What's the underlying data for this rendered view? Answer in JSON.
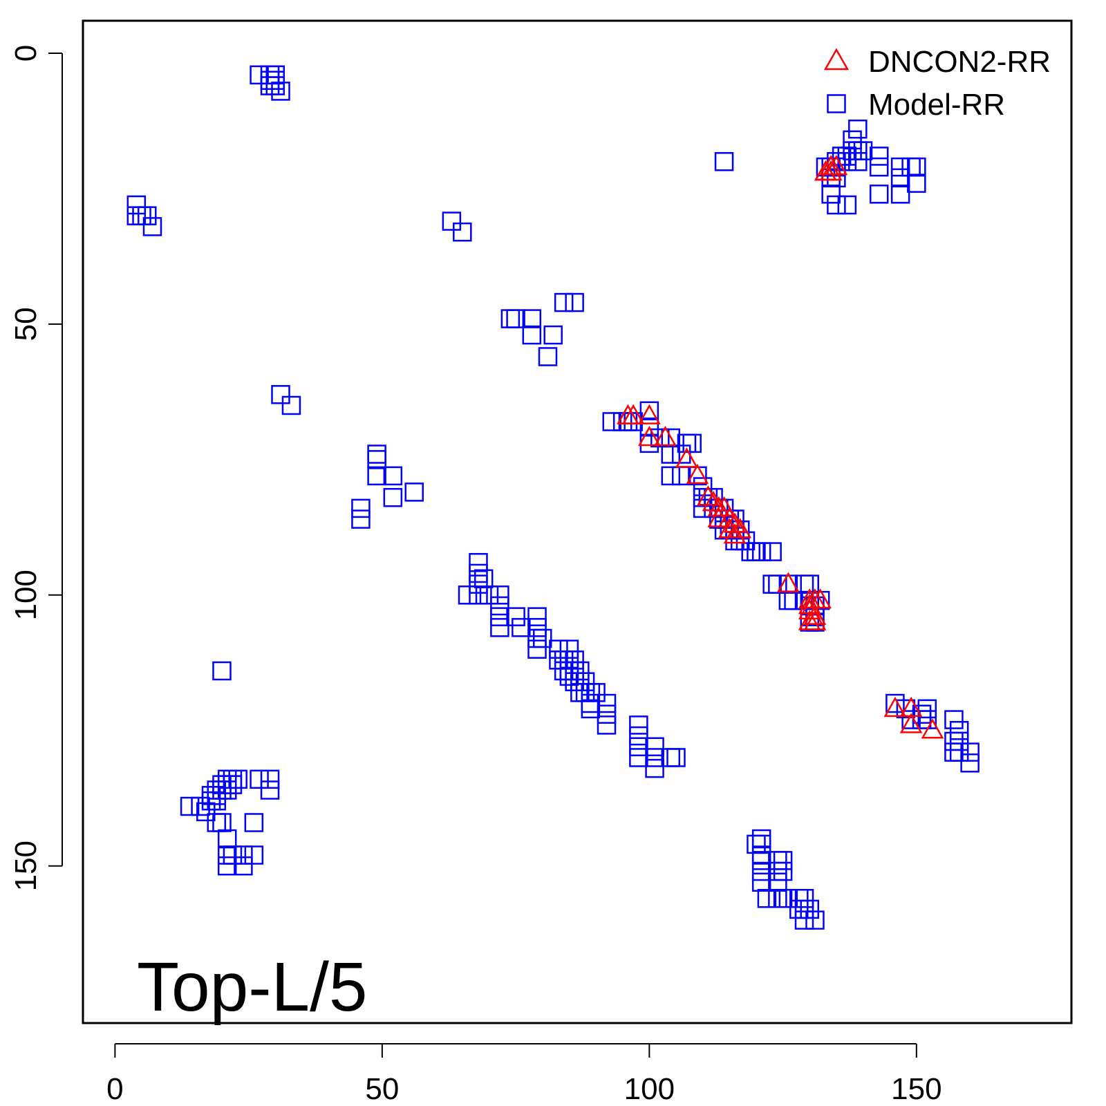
{
  "chart_data": {
    "type": "scatter",
    "annotation": "Top-L/5",
    "xlim": [
      -6,
      179
    ],
    "ylim": [
      179,
      -6
    ],
    "y_axis_reversed": true,
    "x_ticks": [
      0,
      50,
      100,
      150
    ],
    "y_ticks": [
      0,
      50,
      100,
      150
    ],
    "legend_position": "top-right",
    "grid": false,
    "series": [
      {
        "name": "DNCON2-RR",
        "marker": "triangle",
        "color": "#ff0000",
        "points": [
          [
            96,
            67
          ],
          [
            97,
            67
          ],
          [
            100,
            67
          ],
          [
            100,
            71
          ],
          [
            103,
            71
          ],
          [
            107,
            75
          ],
          [
            109,
            78
          ],
          [
            111,
            82
          ],
          [
            112,
            83
          ],
          [
            113,
            84
          ],
          [
            114,
            84
          ],
          [
            113,
            86
          ],
          [
            115,
            86
          ],
          [
            116,
            87
          ],
          [
            115,
            88
          ],
          [
            117,
            88
          ],
          [
            116,
            89
          ],
          [
            126,
            98
          ],
          [
            130,
            101
          ],
          [
            131,
            101
          ],
          [
            132,
            101
          ],
          [
            130,
            102
          ],
          [
            130,
            103
          ],
          [
            131,
            104
          ],
          [
            130,
            105
          ],
          [
            131,
            105
          ],
          [
            133,
            22
          ],
          [
            134,
            21
          ],
          [
            135,
            21
          ],
          [
            133,
            22
          ],
          [
            134,
            22
          ],
          [
            146,
            121
          ],
          [
            149,
            121
          ],
          [
            149,
            124
          ],
          [
            153,
            125
          ]
        ]
      },
      {
        "name": "Model-RR",
        "marker": "square",
        "color": "#0000ff",
        "points": [
          [
            4,
            28
          ],
          [
            4,
            30
          ],
          [
            5,
            30
          ],
          [
            6,
            30
          ],
          [
            7,
            32
          ],
          [
            27,
            4
          ],
          [
            29,
            4
          ],
          [
            30,
            4
          ],
          [
            29,
            5
          ],
          [
            30,
            5
          ],
          [
            29,
            6
          ],
          [
            30,
            6
          ],
          [
            31,
            7
          ],
          [
            63,
            31
          ],
          [
            65,
            33
          ],
          [
            74,
            49
          ],
          [
            75,
            49
          ],
          [
            78,
            49
          ],
          [
            78,
            52
          ],
          [
            82,
            52
          ],
          [
            81,
            56
          ],
          [
            84,
            46
          ],
          [
            86,
            46
          ],
          [
            31,
            63
          ],
          [
            33,
            65
          ],
          [
            49,
            74
          ],
          [
            49,
            75
          ],
          [
            49,
            78
          ],
          [
            52,
            78
          ],
          [
            52,
            82
          ],
          [
            56,
            81
          ],
          [
            46,
            84
          ],
          [
            46,
            86
          ],
          [
            114,
            20
          ],
          [
            93,
            68
          ],
          [
            95,
            68
          ],
          [
            96,
            68
          ],
          [
            97,
            68
          ],
          [
            100,
            66
          ],
          [
            100,
            69
          ],
          [
            100,
            72
          ],
          [
            102,
            71
          ],
          [
            104,
            71
          ],
          [
            107,
            72
          ],
          [
            108,
            72
          ],
          [
            104,
            74
          ],
          [
            106,
            74
          ],
          [
            104,
            78
          ],
          [
            106,
            78
          ],
          [
            109,
            78
          ],
          [
            110,
            80
          ],
          [
            110,
            82
          ],
          [
            111,
            82
          ],
          [
            112,
            82
          ],
          [
            110,
            84
          ],
          [
            112,
            84
          ],
          [
            113,
            84
          ],
          [
            114,
            84
          ],
          [
            113,
            86
          ],
          [
            114,
            86
          ],
          [
            115,
            86
          ],
          [
            116,
            86
          ],
          [
            114,
            88
          ],
          [
            115,
            88
          ],
          [
            116,
            88
          ],
          [
            117,
            88
          ],
          [
            116,
            90
          ],
          [
            117,
            90
          ],
          [
            118,
            90
          ],
          [
            119,
            92
          ],
          [
            120,
            92
          ],
          [
            121,
            92
          ],
          [
            123,
            92
          ],
          [
            123,
            98
          ],
          [
            124,
            98
          ],
          [
            126,
            98
          ],
          [
            129,
            98
          ],
          [
            130,
            98
          ],
          [
            126,
            101
          ],
          [
            127,
            101
          ],
          [
            129,
            101
          ],
          [
            130,
            101
          ],
          [
            130,
            102
          ],
          [
            131,
            102
          ],
          [
            132,
            101
          ],
          [
            130,
            104
          ],
          [
            131,
            104
          ],
          [
            130,
            105
          ],
          [
            131,
            105
          ],
          [
            133,
            21
          ],
          [
            134,
            21
          ],
          [
            135,
            21
          ],
          [
            136,
            19
          ],
          [
            137,
            19
          ],
          [
            138,
            18
          ],
          [
            139,
            18
          ],
          [
            140,
            18
          ],
          [
            138,
            16
          ],
          [
            139,
            14
          ],
          [
            135,
            20
          ],
          [
            137,
            20
          ],
          [
            139,
            20
          ],
          [
            134,
            23
          ],
          [
            135,
            23
          ],
          [
            134,
            26
          ],
          [
            135,
            28
          ],
          [
            137,
            28
          ],
          [
            143,
            19
          ],
          [
            143,
            21
          ],
          [
            147,
            21
          ],
          [
            149,
            21
          ],
          [
            150,
            21
          ],
          [
            147,
            23
          ],
          [
            150,
            24
          ],
          [
            143,
            26
          ],
          [
            147,
            26
          ],
          [
            68,
            94
          ],
          [
            68,
            96
          ],
          [
            69,
            97
          ],
          [
            68,
            98
          ],
          [
            66,
            100
          ],
          [
            68,
            100
          ],
          [
            70,
            100
          ],
          [
            72,
            100
          ],
          [
            72,
            102
          ],
          [
            72,
            104
          ],
          [
            75,
            104
          ],
          [
            72,
            106
          ],
          [
            76,
            106
          ],
          [
            79,
            104
          ],
          [
            79,
            106
          ],
          [
            79,
            108
          ],
          [
            80,
            108
          ],
          [
            79,
            110
          ],
          [
            83,
            110
          ],
          [
            85,
            110
          ],
          [
            83,
            112
          ],
          [
            84,
            112
          ],
          [
            85,
            112
          ],
          [
            86,
            112
          ],
          [
            84,
            114
          ],
          [
            85,
            114
          ],
          [
            86,
            114
          ],
          [
            87,
            114
          ],
          [
            85,
            115
          ],
          [
            86,
            116
          ],
          [
            87,
            116
          ],
          [
            88,
            116
          ],
          [
            87,
            118
          ],
          [
            88,
            118
          ],
          [
            89,
            118
          ],
          [
            90,
            118
          ],
          [
            89,
            120
          ],
          [
            92,
            120
          ],
          [
            92,
            122
          ],
          [
            92,
            124
          ],
          [
            89,
            121
          ],
          [
            98,
            124
          ],
          [
            98,
            126
          ],
          [
            98,
            128
          ],
          [
            98,
            130
          ],
          [
            101,
            128
          ],
          [
            101,
            130
          ],
          [
            101,
            132
          ],
          [
            104,
            130
          ],
          [
            105,
            130
          ],
          [
            146,
            120
          ],
          [
            148,
            121
          ],
          [
            151,
            122
          ],
          [
            152,
            121
          ],
          [
            149,
            123
          ],
          [
            151,
            123
          ],
          [
            152,
            123
          ],
          [
            157,
            123
          ],
          [
            158,
            125
          ],
          [
            157,
            127
          ],
          [
            158,
            127
          ],
          [
            157,
            129
          ],
          [
            158,
            129
          ],
          [
            160,
            129
          ],
          [
            160,
            131
          ],
          [
            29,
            134
          ],
          [
            29,
            136
          ],
          [
            27,
            134
          ],
          [
            21,
            134
          ],
          [
            22,
            134
          ],
          [
            23,
            134
          ],
          [
            20,
            135
          ],
          [
            21,
            135
          ],
          [
            22,
            135
          ],
          [
            19,
            136
          ],
          [
            20,
            136
          ],
          [
            21,
            136
          ],
          [
            18,
            137
          ],
          [
            19,
            137
          ],
          [
            18,
            138
          ],
          [
            19,
            138
          ],
          [
            14,
            139
          ],
          [
            16,
            139
          ],
          [
            17,
            140
          ],
          [
            19,
            142
          ],
          [
            20,
            142
          ],
          [
            26,
            142
          ],
          [
            21,
            145
          ],
          [
            21,
            148
          ],
          [
            22,
            148
          ],
          [
            24,
            148
          ],
          [
            26,
            148
          ],
          [
            21,
            150
          ],
          [
            24,
            150
          ],
          [
            20,
            114
          ],
          [
            121,
            145
          ],
          [
            121,
            146
          ],
          [
            120,
            146
          ],
          [
            121,
            148
          ],
          [
            121,
            149
          ],
          [
            124,
            149
          ],
          [
            125,
            149
          ],
          [
            121,
            151
          ],
          [
            124,
            151
          ],
          [
            125,
            151
          ],
          [
            121,
            153
          ],
          [
            124,
            153
          ],
          [
            122,
            156
          ],
          [
            124,
            156
          ],
          [
            125,
            156
          ],
          [
            126,
            156
          ],
          [
            128,
            156
          ],
          [
            129,
            156
          ],
          [
            128,
            158
          ],
          [
            130,
            158
          ],
          [
            129,
            160
          ],
          [
            131,
            160
          ],
          [
            129,
            158
          ]
        ]
      }
    ]
  }
}
